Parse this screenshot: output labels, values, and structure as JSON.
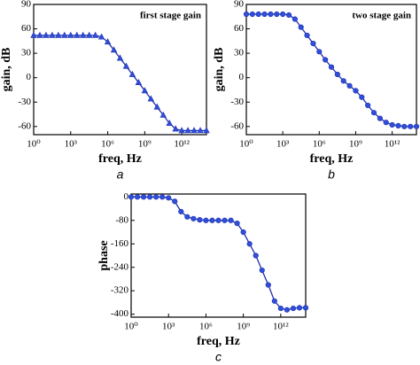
{
  "chart_data": [
    {
      "type": "line",
      "title": "first stage gain",
      "xlabel": "freq, Hz",
      "ylabel": "gain, dB",
      "caption": "a",
      "xscale": "log",
      "xlim": [
        1,
        100000000000000.0
      ],
      "xticks": [
        {
          "value": 1,
          "label": "10⁰"
        },
        {
          "value": 1000,
          "label": "10³"
        },
        {
          "value": 1000000,
          "label": "10⁶"
        },
        {
          "value": 1000000000,
          "label": "10⁹"
        },
        {
          "value": 1000000000000,
          "label": "10¹²"
        }
      ],
      "ylim": [
        -70,
        90
      ],
      "yticks": [
        -60,
        -30,
        0,
        30,
        60,
        90
      ],
      "marker": "triangle",
      "color": "#1f2fb0",
      "marker_color": "#2f4fd8",
      "x": [
        1,
        3.162,
        10,
        31.62,
        100,
        316.2,
        1000,
        3162,
        10000.0,
        31620.0,
        100000.0,
        316200.0,
        1000000.0,
        3162000.0,
        10000000.0,
        31620000.0,
        100000000.0,
        316200000.0,
        1000000000.0,
        3162000000.0,
        10000000000.0,
        31620000000.0,
        100000000000.0,
        316200000000.0,
        1000000000000.0,
        3162000000000.0,
        10000000000000.0,
        31620000000000.0,
        100000000000000.0
      ],
      "values": [
        52,
        52,
        52,
        52,
        52,
        52,
        52,
        52,
        52,
        52,
        52,
        50,
        44,
        34,
        24,
        14,
        4,
        -6,
        -16,
        -26,
        -36,
        -46,
        -56,
        -63,
        -65,
        -65,
        -65,
        -65,
        -65
      ]
    },
    {
      "type": "line",
      "title": "two stage gain",
      "xlabel": "freq, Hz",
      "ylabel": "gain, dB",
      "caption": "b",
      "xscale": "log",
      "xlim": [
        1,
        100000000000000.0
      ],
      "xticks": [
        {
          "value": 1,
          "label": "10⁰"
        },
        {
          "value": 1000,
          "label": "10³"
        },
        {
          "value": 1000000,
          "label": "10⁶"
        },
        {
          "value": 1000000000,
          "label": "10⁹"
        },
        {
          "value": 1000000000000,
          "label": "10¹²"
        }
      ],
      "ylim": [
        -70,
        90
      ],
      "yticks": [
        -60,
        -30,
        0,
        30,
        60,
        90
      ],
      "marker": "circle",
      "color": "#1f2fb0",
      "marker_color": "#2f4fd8",
      "x": [
        1,
        3.162,
        10,
        31.62,
        100,
        316.2,
        1000,
        3162,
        10000.0,
        31620.0,
        100000.0,
        316200.0,
        1000000.0,
        3162000.0,
        10000000.0,
        31620000.0,
        100000000.0,
        316200000.0,
        1000000000.0,
        3162000000.0,
        10000000000.0,
        31620000000.0,
        100000000000.0,
        316200000000.0,
        1000000000000.0,
        3162000000000.0,
        10000000000000.0,
        31620000000000.0,
        100000000000000.0
      ],
      "values": [
        78,
        78,
        78,
        78,
        78,
        78,
        78,
        77,
        72,
        62,
        52,
        42,
        32,
        22,
        13,
        4,
        -4,
        -10,
        -16,
        -24,
        -34,
        -43,
        -50,
        -55,
        -58,
        -59,
        -60,
        -60,
        -60
      ]
    },
    {
      "type": "line",
      "xlabel": "freq, Hz",
      "ylabel": "phase",
      "caption": "c",
      "xscale": "log",
      "xlim": [
        1,
        100000000000000.0
      ],
      "xticks": [
        {
          "value": 1,
          "label": "10⁰"
        },
        {
          "value": 1000,
          "label": "10³"
        },
        {
          "value": 1000000,
          "label": "10⁶"
        },
        {
          "value": 1000000000,
          "label": "10⁹"
        },
        {
          "value": 1000000000000,
          "label": "10¹²"
        }
      ],
      "ylim": [
        -410,
        10
      ],
      "yticks": [
        -400,
        -320,
        -240,
        -160,
        -80,
        0
      ],
      "marker": "circle",
      "color": "#1f2fb0",
      "marker_color": "#2f4fd8",
      "x": [
        1,
        3.162,
        10,
        31.62,
        100,
        316.2,
        1000,
        3162,
        10000.0,
        31620.0,
        100000.0,
        316200.0,
        1000000.0,
        3162000.0,
        10000000.0,
        31620000.0,
        100000000.0,
        316200000.0,
        1000000000.0,
        3162000000.0,
        10000000000.0,
        31620000000.0,
        100000000000.0,
        316200000000.0,
        1000000000000.0,
        3162000000000.0,
        10000000000000.0,
        31620000000000.0,
        100000000000000.0
      ],
      "values": [
        0,
        0,
        0,
        0,
        0,
        0,
        -3,
        -15,
        -50,
        -68,
        -74,
        -78,
        -80,
        -80,
        -80,
        -80,
        -80,
        -90,
        -120,
        -160,
        -200,
        -250,
        -300,
        -355,
        -380,
        -385,
        -380,
        -378,
        -378
      ]
    }
  ]
}
